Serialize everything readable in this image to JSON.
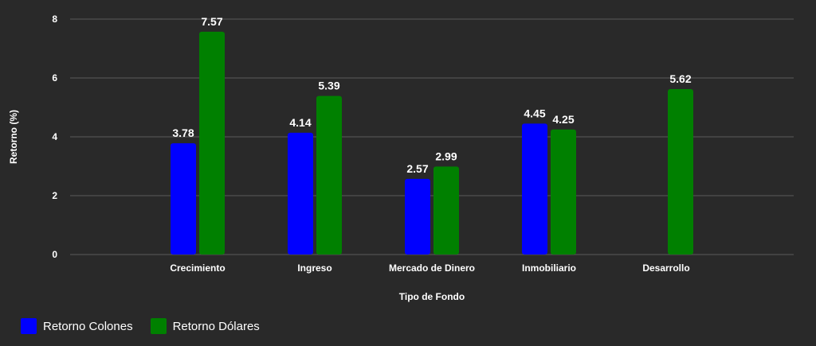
{
  "chart_data": {
    "type": "bar",
    "title": "",
    "xlabel": "Tipo de Fondo",
    "ylabel": "Retorno (%)",
    "categories": [
      "Crecimiento",
      "Ingreso",
      "Mercado de Dinero",
      "Inmobiliario",
      "Desarrollo"
    ],
    "series": [
      {
        "name": "Retorno Colones",
        "color": "#0000ff",
        "values": [
          3.78,
          4.14,
          2.57,
          4.45,
          null
        ]
      },
      {
        "name": "Retorno Dólares",
        "color": "#008000",
        "values": [
          7.57,
          5.39,
          2.99,
          4.25,
          5.62
        ]
      }
    ],
    "data_labels": [
      [
        "3.78",
        "4.14",
        "2.57",
        "4.45",
        ""
      ],
      [
        "7.57",
        "5.39",
        "2.99",
        "4.25",
        "5.62"
      ]
    ],
    "ylim": [
      0,
      8
    ],
    "yticks": [
      "0",
      "2",
      "4",
      "6",
      "8"
    ],
    "grid": true,
    "legend_position": "bottom-left",
    "colors": {
      "background": "#292929",
      "grid": "#5a5a5a",
      "text": "#ffffff"
    }
  }
}
